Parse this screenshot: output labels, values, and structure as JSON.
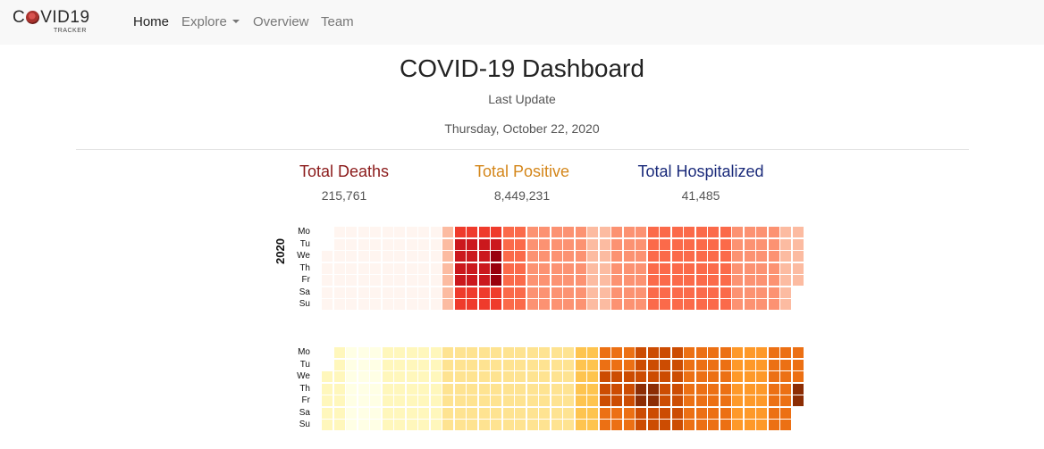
{
  "navbar": {
    "brand_main_a": "C",
    "brand_main_b": "VID19",
    "brand_sub": "TRACKER",
    "items": [
      {
        "label": "Home",
        "active": true
      },
      {
        "label": "Explore",
        "has_dropdown": true
      },
      {
        "label": "Overview"
      },
      {
        "label": "Team"
      }
    ]
  },
  "header": {
    "title": "COVID-19 Dashboard",
    "last_update_label": "Last Update",
    "date": "Thursday, October 22, 2020"
  },
  "stats": [
    {
      "label": "Total Deaths",
      "value": "215,761",
      "color": "#8b1a1a"
    },
    {
      "label": "Total Positive",
      "value": "8,449,231",
      "color": "#d4861a"
    },
    {
      "label": "Total Hospitalized",
      "value": "41,485",
      "color": "#1a2a7a"
    }
  ],
  "heatmaps": {
    "day_labels": [
      "Mo",
      "Tu",
      "We",
      "Th",
      "Fr",
      "Sa",
      "Su"
    ],
    "deaths": {
      "year": "2020",
      "weeks": 40,
      "colors": [
        "#fff5f0",
        "#fee0d2",
        "#fcbba1",
        "#fc9272",
        "#fb6a4a",
        "#ef3b2c",
        "#cb181d",
        "#99000d"
      ]
    },
    "positive": {
      "weeks": 40,
      "colors": [
        "#ffffe5",
        "#fff7bc",
        "#fee391",
        "#fec44f",
        "#fe9929",
        "#ec7014",
        "#cc4c02",
        "#8c2d04"
      ]
    }
  }
}
